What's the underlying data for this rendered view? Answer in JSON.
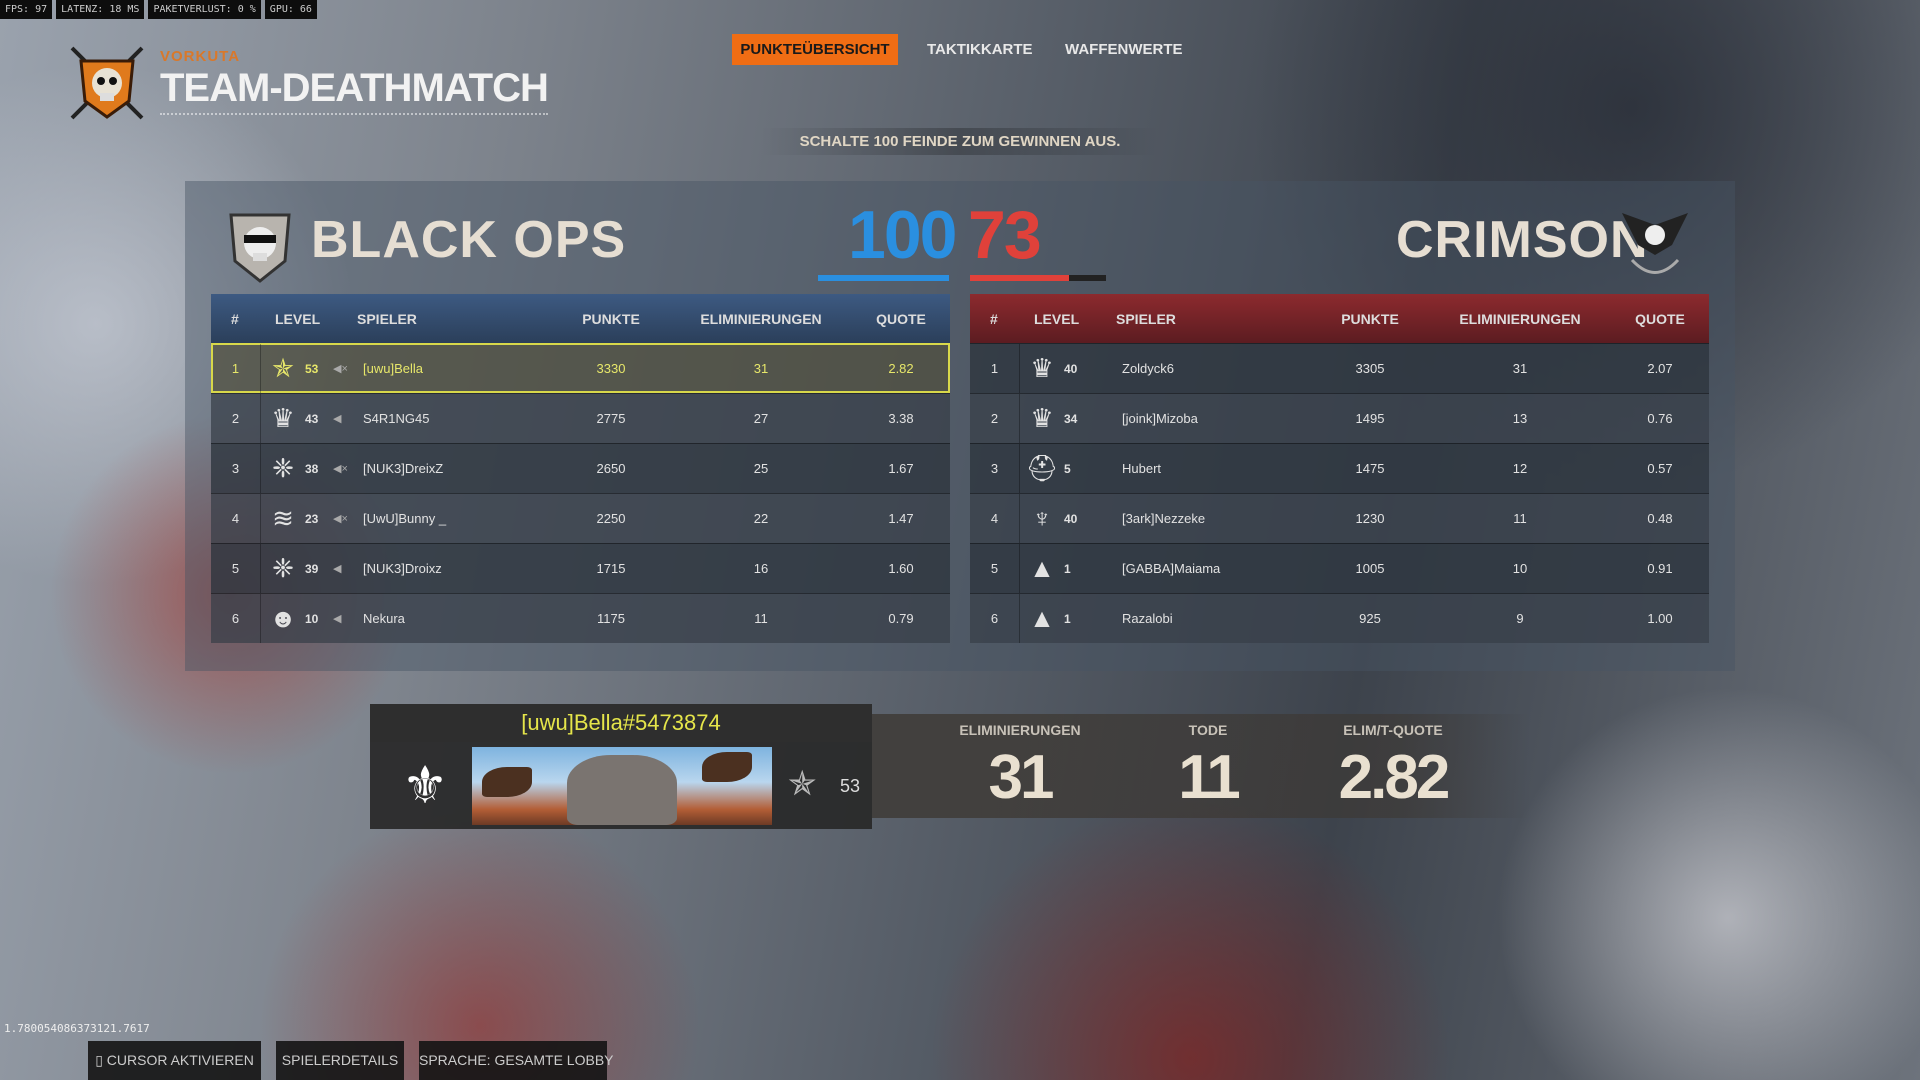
{
  "perf": {
    "fps": "FPS:  97",
    "latency": "LATENZ: 18 MS",
    "packetloss": "PAKETVERLUST: 0 %",
    "gpu": "GPU: 66"
  },
  "header": {
    "map": "VORKUTA",
    "mode": "TEAM-DEATHMATCH"
  },
  "tabs": [
    {
      "label": "PUNKTEÜBERSICHT",
      "active": true
    },
    {
      "label": "TAKTIKKARTE"
    },
    {
      "label": "WAFFENWERTE"
    }
  ],
  "objective": "SCHALTE 100 FEINDE ZUM GEWINNEN AUS.",
  "teams": {
    "left": {
      "name": "BLACK OPS",
      "score": "100",
      "color": "#2a8fe0",
      "progress": 1.0
    },
    "right": {
      "name": "CRIMSON",
      "score": "73",
      "color": "#e0413a",
      "progress": 0.73
    }
  },
  "columns": [
    "#",
    "LEVEL",
    "SPIELER",
    "PUNKTE",
    "ELIMINIERUNGEN",
    "QUOTE"
  ],
  "left_rows": [
    {
      "rank": "1",
      "icon": "stars-rank-icon",
      "level": "53",
      "muted": true,
      "name": "[uwu]Bella",
      "points": "3330",
      "elims": "31",
      "ratio": "2.82",
      "me": true
    },
    {
      "rank": "2",
      "icon": "jester-rank-icon",
      "level": "43",
      "muted": false,
      "name": "S4R1NG45",
      "points": "2775",
      "elims": "27",
      "ratio": "3.38"
    },
    {
      "rank": "3",
      "icon": "leaf-rank-icon",
      "level": "38",
      "muted": true,
      "name": "[NUK3]DreixZ",
      "points": "2650",
      "elims": "25",
      "ratio": "1.67"
    },
    {
      "rank": "4",
      "icon": "sergeant-rank-icon",
      "level": "23",
      "muted": true,
      "name": "[UwU]Bunny _",
      "points": "2250",
      "elims": "22",
      "ratio": "1.47"
    },
    {
      "rank": "5",
      "icon": "leaf-rank-icon",
      "level": "39",
      "muted": false,
      "name": "[NUK3]Droixz",
      "points": "1715",
      "elims": "16",
      "ratio": "1.60"
    },
    {
      "rank": "6",
      "icon": "soldier-rank-icon",
      "level": "10",
      "muted": false,
      "name": "Nekura",
      "points": "1175",
      "elims": "11",
      "ratio": "0.79"
    }
  ],
  "right_rows": [
    {
      "rank": "1",
      "icon": "jester-rank-icon",
      "level": "40",
      "name": "Zoldyck6",
      "points": "3305",
      "elims": "31",
      "ratio": "2.07"
    },
    {
      "rank": "2",
      "icon": "jester-rank-icon",
      "level": "34",
      "name": "[joink]Mizoba",
      "points": "1495",
      "elims": "13",
      "ratio": "0.76"
    },
    {
      "rank": "3",
      "icon": "helmet-rank-icon",
      "level": "5",
      "name": "Hubert",
      "points": "1475",
      "elims": "12",
      "ratio": "0.57"
    },
    {
      "rank": "4",
      "icon": "eagle-rank-icon",
      "level": "40",
      "name": "[3ark]Nezzeke",
      "points": "1230",
      "elims": "11",
      "ratio": "0.48"
    },
    {
      "rank": "5",
      "icon": "private-rank-icon",
      "level": "1",
      "name": "[GABBA]Maiama",
      "points": "1005",
      "elims": "10",
      "ratio": "0.91"
    },
    {
      "rank": "6",
      "icon": "private-rank-icon",
      "level": "1",
      "name": "Razalobi",
      "points": "925",
      "elims": "9",
      "ratio": "1.00"
    }
  ],
  "player": {
    "tag": "[uwu]Bella#5473874",
    "level": "53"
  },
  "summary": [
    {
      "label": "ELIMINIERUNGEN",
      "value": "31"
    },
    {
      "label": "TODE",
      "value": "11"
    },
    {
      "label": "ELIM/T-QUOTE",
      "value": "2.82"
    }
  ],
  "footer": {
    "build": "1.780054086373121.7617",
    "cursor": "CURSOR AKTIVIEREN",
    "details": "SPIELERDETAILS",
    "voice": "SPRACHE: GESAMTE LOBBY"
  },
  "icons": {
    "stars-rank-icon": "✯",
    "jester-rank-icon": "♛",
    "leaf-rank-icon": "❈",
    "sergeant-rank-icon": "≋",
    "soldier-rank-icon": "☻",
    "helmet-rank-icon": "⛑",
    "eagle-rank-icon": "♆",
    "private-rank-icon": "▲"
  }
}
